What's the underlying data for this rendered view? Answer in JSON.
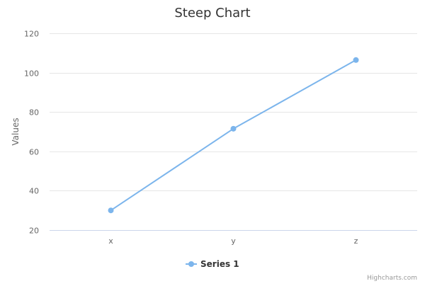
{
  "chart_data": {
    "type": "line",
    "title": "Steep Chart",
    "xlabel": "",
    "ylabel": "Values",
    "categories": [
      "x",
      "y",
      "z"
    ],
    "ylim": [
      20,
      120
    ],
    "yticks": [
      20,
      40,
      60,
      80,
      100,
      120
    ],
    "grid": true,
    "legend_position": "bottom-center",
    "series": [
      {
        "name": "Series 1",
        "color": "#7cb5ec",
        "values": [
          30,
          71.5,
          106.4
        ]
      }
    ]
  },
  "credits": "Highcharts.com"
}
